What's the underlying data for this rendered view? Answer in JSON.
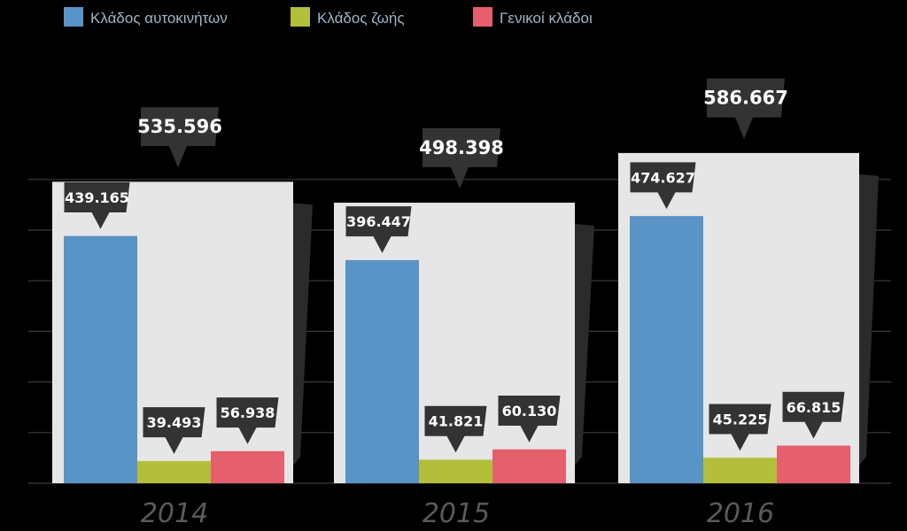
{
  "chart_data": {
    "type": "bar",
    "categories": [
      "2014",
      "2015",
      "2016"
    ],
    "series": [
      {
        "name": "Κλάδος αυτοκινήτων",
        "values": [
          439.165,
          396.447,
          474.627
        ],
        "labels": [
          "439.165",
          "396.447",
          "474.627"
        ],
        "color": "#5a93c6"
      },
      {
        "name": "Κλάδος ζωής",
        "values": [
          39.493,
          41.821,
          45.225
        ],
        "labels": [
          "39.493",
          "41.821",
          "45.225"
        ],
        "color": "#b3bf3a"
      },
      {
        "name": "Γενικοί κλάδοι",
        "values": [
          56.938,
          60.13,
          66.815
        ],
        "labels": [
          "56.938",
          "60.130",
          "66.815"
        ],
        "color": "#e65f6c"
      }
    ],
    "totals": [
      535.596,
      498.398,
      586.667
    ],
    "total_labels": [
      "535.596",
      "498.398",
      "586.667"
    ],
    "ylim": [
      0,
      600
    ],
    "grid": true,
    "legend": "top-left",
    "background_box_color": "#e6e6e6",
    "callout_color": "#333333"
  }
}
